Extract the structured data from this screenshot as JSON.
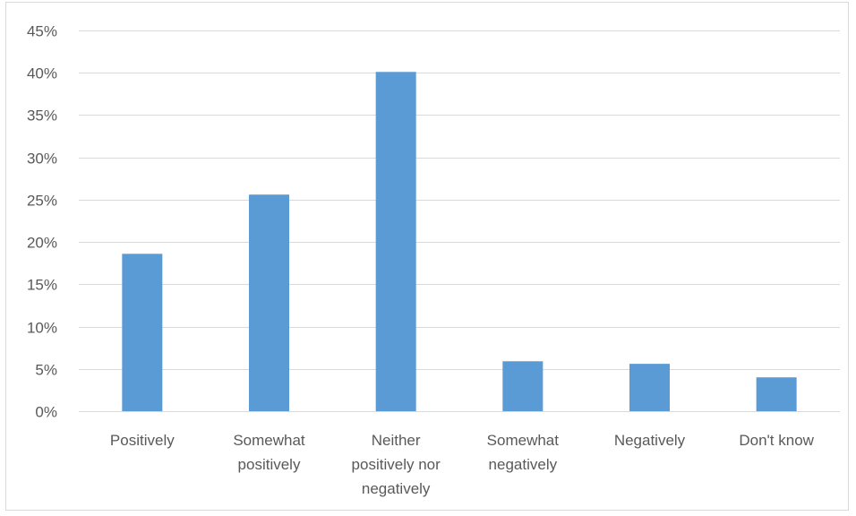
{
  "chart_data": {
    "type": "bar",
    "categories": [
      [
        "Positively"
      ],
      [
        "Somewhat",
        "positively"
      ],
      [
        "Neither",
        "positively nor",
        "negatively"
      ],
      [
        "Somewhat",
        "negatively"
      ],
      [
        "Negatively"
      ],
      [
        "Don't know"
      ]
    ],
    "values": [
      18.6,
      25.6,
      40.1,
      5.9,
      5.6,
      4.0
    ],
    "ylim": [
      0,
      45
    ],
    "yticks": [
      0,
      5,
      10,
      15,
      20,
      25,
      30,
      35,
      40,
      45
    ],
    "ytick_labels": [
      "0%",
      "5%",
      "10%",
      "15%",
      "20%",
      "25%",
      "30%",
      "35%",
      "40%",
      "45%"
    ],
    "grid": true,
    "colors": {
      "bar": "#5b9bd5",
      "grid": "#d9d9d9",
      "axis": "#d9d9d9",
      "text": "#595959"
    }
  }
}
